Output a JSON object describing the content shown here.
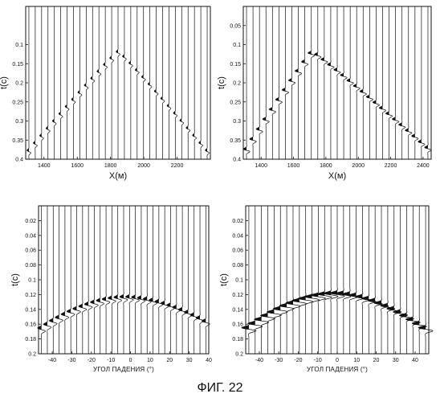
{
  "caption": "ФИГ. 22",
  "panels": [
    {
      "id": "top-left",
      "ylabel": "t(c)",
      "xlabel": "X(м)",
      "yticks": [
        "0.1",
        "0.15",
        "0.2",
        "0.25",
        "0.3",
        "0.35",
        "0.4"
      ],
      "xticks": [
        "1400",
        "1600",
        "1800",
        "2000",
        "2200"
      ],
      "chart_data": {
        "type": "line",
        "plot": "seismic wiggle traces",
        "xlim": [
          1290,
          2400
        ],
        "ylim": [
          0,
          0.4
        ],
        "y_reversed": true,
        "trace_count": 29,
        "event": {
          "apex_x": 1850,
          "apex_t": 0.12,
          "left_end": [
            1290,
            0.39
          ],
          "right_end": [
            2400,
            0.39
          ],
          "amplitude": "thin"
        }
      }
    },
    {
      "id": "top-right",
      "ylabel": "t(c)",
      "xlabel": "X(м)",
      "yticks": [
        "0.05",
        "0.1",
        "0.15",
        "0.2",
        "0.25",
        "0.3",
        "0.35",
        "0.4"
      ],
      "xticks": [
        "1400",
        "1600",
        "1800",
        "2000",
        "2200",
        "2400"
      ],
      "chart_data": {
        "type": "line",
        "plot": "seismic wiggle traces",
        "xlim": [
          1290,
          2450
        ],
        "ylim": [
          0,
          0.4
        ],
        "y_reversed": true,
        "trace_count": 29,
        "event": {
          "apex_x": 1720,
          "apex_t": 0.12,
          "left_end": [
            1290,
            0.39
          ],
          "right_end": [
            2450,
            0.38
          ],
          "amplitude": "thick"
        }
      }
    },
    {
      "id": "bottom-left",
      "ylabel": "t(c)",
      "xlabel": "УГОЛ ПАДЕНИЯ (°)",
      "yticks": [
        "0.02",
        "0.04",
        "0.06",
        "0.08",
        "0.1",
        "0.12",
        "0.14",
        "0.16",
        "0.18",
        "0.2"
      ],
      "xticks": [
        "-40",
        "-30",
        "-20",
        "-10",
        "0",
        "10",
        "20",
        "30",
        "40"
      ],
      "chart_data": {
        "type": "line",
        "plot": "seismic wiggle traces",
        "xlim": [
          -47,
          40
        ],
        "ylim": [
          0,
          0.2
        ],
        "y_reversed": true,
        "trace_count": 29,
        "event": {
          "apex_x": -2,
          "apex_t": 0.125,
          "left_end": [
            -47,
            0.17
          ],
          "right_end": [
            40,
            0.16
          ],
          "amplitude": "medium"
        }
      }
    },
    {
      "id": "bottom-right",
      "ylabel": "t(c)",
      "xlabel": "УГОЛ ПАДЕНИЯ (°)",
      "yticks": [
        "0.02",
        "0.04",
        "0.06",
        "0.08",
        "0.1",
        "0.12",
        "0.14",
        "0.16",
        "0.18",
        "0.2"
      ],
      "xticks": [
        "-40",
        "-30",
        "-20",
        "-10",
        "0",
        "10",
        "20",
        "30",
        "40"
      ],
      "chart_data": {
        "type": "line",
        "plot": "seismic wiggle traces",
        "xlim": [
          -47,
          47
        ],
        "ylim": [
          0,
          0.2
        ],
        "y_reversed": true,
        "trace_count": 29,
        "event": {
          "apex_x": 0,
          "apex_t": 0.12,
          "left_end": [
            -47,
            0.17
          ],
          "right_end": [
            47,
            0.17
          ],
          "amplitude": "heavy"
        }
      }
    }
  ]
}
